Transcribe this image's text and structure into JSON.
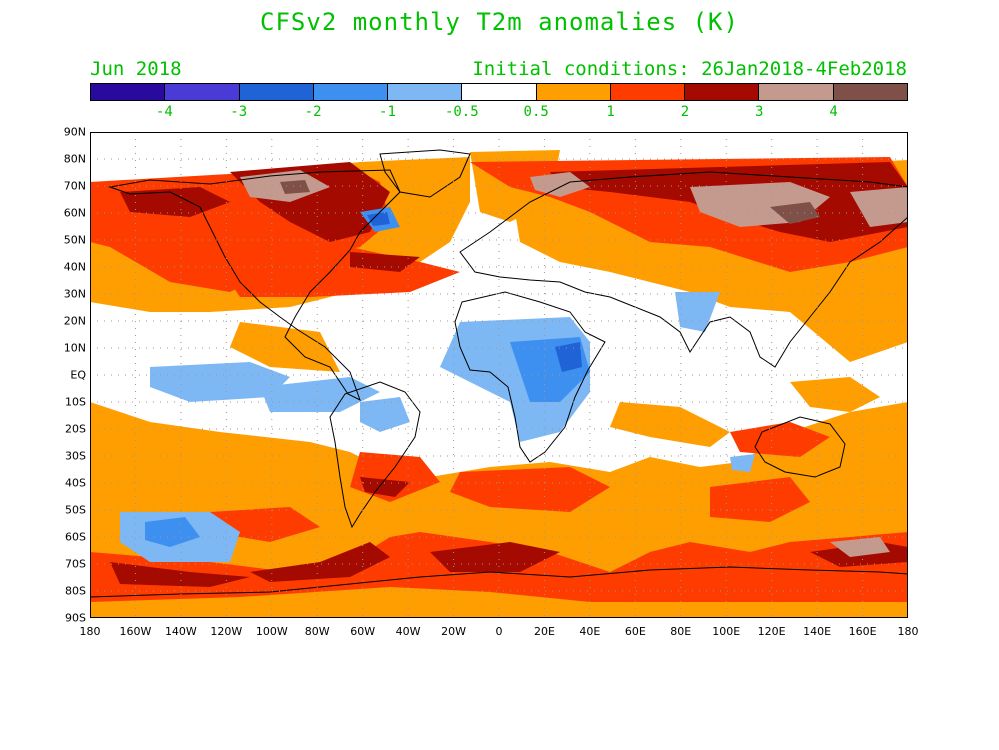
{
  "title": "CFSv2 monthly T2m anomalies (K)",
  "subtitle_left": "Jun 2018",
  "subtitle_right": "Initial conditions: 26Jan2018-4Feb2018",
  "text_color": "#00c000",
  "colorbar": {
    "colors": [
      "#2a0a9e",
      "#4a3ad6",
      "#1f63d6",
      "#3d8ff0",
      "#7db8f5",
      "#ffffff",
      "#ff9e00",
      "#ff3c00",
      "#a50a00",
      "#c49a8f",
      "#7e5048"
    ],
    "labels": [
      "-4",
      "-3",
      "-2",
      "-1",
      "-0.5",
      "0.5",
      "1",
      "2",
      "3",
      "4"
    ]
  },
  "lat_labels": [
    "90N",
    "80N",
    "70N",
    "60N",
    "50N",
    "40N",
    "30N",
    "20N",
    "10N",
    "EQ",
    "10S",
    "20S",
    "30S",
    "40S",
    "50S",
    "60S",
    "70S",
    "80S",
    "90S"
  ],
  "lon_labels": [
    "180",
    "160W",
    "140W",
    "120W",
    "100W",
    "80W",
    "60W",
    "40W",
    "20W",
    "0",
    "20E",
    "40E",
    "60E",
    "80E",
    "100E",
    "120E",
    "140E",
    "160E",
    "180"
  ]
}
